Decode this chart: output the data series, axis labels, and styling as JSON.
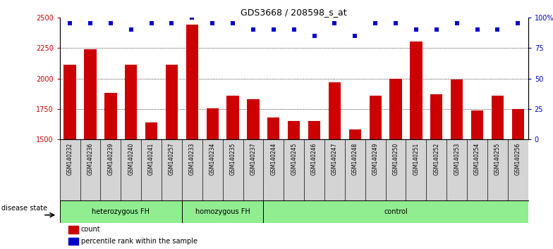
{
  "title": "GDS3668 / 208598_s_at",
  "samples": [
    "GSM140232",
    "GSM140236",
    "GSM140239",
    "GSM140240",
    "GSM140241",
    "GSM140257",
    "GSM140233",
    "GSM140234",
    "GSM140235",
    "GSM140237",
    "GSM140244",
    "GSM140245",
    "GSM140246",
    "GSM140247",
    "GSM140248",
    "GSM140249",
    "GSM140250",
    "GSM140251",
    "GSM140252",
    "GSM140253",
    "GSM140254",
    "GSM140255",
    "GSM140256"
  ],
  "counts": [
    2110,
    2240,
    1880,
    2110,
    1640,
    2110,
    2440,
    1755,
    1860,
    1830,
    1680,
    1650,
    1650,
    1970,
    1580,
    1860,
    2000,
    2300,
    1870,
    1990,
    1740,
    1860,
    1750
  ],
  "percentiles": [
    95,
    95,
    95,
    90,
    95,
    95,
    100,
    95,
    95,
    90,
    90,
    90,
    85,
    95,
    85,
    95,
    95,
    90,
    90,
    95,
    90,
    90,
    95
  ],
  "group_boundaries": [
    0,
    6,
    10,
    23
  ],
  "group_labels": [
    "heterozygous FH",
    "homozygous FH",
    "control"
  ],
  "ylim_left": [
    1500,
    2500
  ],
  "ylim_right": [
    0,
    100
  ],
  "yticks_left": [
    1500,
    1750,
    2000,
    2250,
    2500
  ],
  "yticks_right": [
    0,
    25,
    50,
    75,
    100
  ],
  "bar_color": "#CC0000",
  "dot_color": "#0000CC",
  "background_color": "#ffffff",
  "plot_bg_color": "#ffffff",
  "tick_label_bg": "#d4d4d4",
  "group_green": "#90EE90",
  "title_fontsize": 9,
  "tick_fontsize": 6,
  "legend_items": [
    "count",
    "percentile rank within the sample"
  ]
}
